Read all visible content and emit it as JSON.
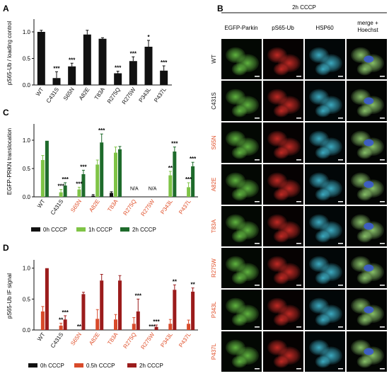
{
  "panel_letters": {
    "a": "A",
    "b": "B",
    "c": "C",
    "d": "D"
  },
  "genotypes": [
    "WT",
    "C431S",
    "S65N",
    "A82E",
    "T83A",
    "R275Q",
    "R275W",
    "P343L",
    "P437L"
  ],
  "pd_mutant_color": "#e0502a",
  "colors": {
    "black": "#111111",
    "green_light": "#7fc446",
    "green_mid": "#2fa02f",
    "green_dark": "#1e6b2b",
    "red_light": "#e88a6f",
    "red_mid": "#d84a2a",
    "red_dark": "#9b1c1c"
  },
  "panel_b": {
    "treatment": "2h CCCP",
    "columns": [
      "EGFP-Parkin",
      "pS65-Ub",
      "HSP60",
      "merge +",
      "Hoechst"
    ],
    "rows": [
      "WT",
      "C431S",
      "S65N",
      "A82E",
      "T83A",
      "R275W",
      "P343L",
      "P437L"
    ],
    "pd_rows": [
      "S65N",
      "A82E",
      "T83A",
      "R275W",
      "P343L",
      "P437L"
    ]
  },
  "chart_data": [
    {
      "id": "A",
      "type": "bar",
      "ylabel": "pS65-Ub / loading control",
      "ylim": [
        0,
        1.2
      ],
      "yticks": [
        0.0,
        0.5,
        1.0
      ],
      "categories": [
        "WT",
        "C431S",
        "S65N",
        "A82E",
        "T83A",
        "R275Q",
        "R275W",
        "P343L",
        "P437L"
      ],
      "series": [
        {
          "values": [
            1.0,
            0.13,
            0.35,
            0.95,
            0.87,
            0.22,
            0.45,
            0.72,
            0.27
          ],
          "errors": [
            0.03,
            0.12,
            0.06,
            0.08,
            0.02,
            0.04,
            0.08,
            0.12,
            0.09
          ],
          "color": "#111111"
        }
      ],
      "significance": [
        "",
        "***",
        "***",
        "",
        "",
        "***",
        "***",
        "*",
        "***"
      ]
    },
    {
      "id": "C",
      "type": "bar",
      "ylabel": "EGFP-PRKN translocation",
      "ylim": [
        0,
        1.25
      ],
      "yticks": [
        0.0,
        0.5,
        1.0
      ],
      "categories": [
        "WT",
        "C431S",
        "S65N",
        "A82E",
        "T83A",
        "R275Q",
        "R275W",
        "P343L",
        "P437L"
      ],
      "series": [
        {
          "name": "0h CCCP",
          "color": "#111111",
          "values": [
            0.0,
            0.0,
            0.0,
            0.02,
            0.07,
            null,
            null,
            0.0,
            0.0
          ],
          "errors": [
            0,
            0,
            0,
            0.02,
            0.02,
            0,
            0,
            0,
            0
          ]
        },
        {
          "name": "1h CCCP",
          "color": "#7fc446",
          "values": [
            0.65,
            0.08,
            0.13,
            0.57,
            0.78,
            null,
            null,
            0.38,
            0.17
          ],
          "errors": [
            0.08,
            0.05,
            0.04,
            0.08,
            0.1,
            0,
            0,
            0.07,
            0.08
          ]
        },
        {
          "name": "2h CCCP",
          "color": "#1e6b2b",
          "values": [
            0.99,
            0.2,
            0.4,
            0.96,
            0.84,
            null,
            null,
            0.8,
            0.54
          ],
          "errors": [
            0,
            0.05,
            0.07,
            0.15,
            0.05,
            0,
            0,
            0.08,
            0.07
          ]
        }
      ],
      "significance_1h": [
        "",
        "***",
        "***",
        "",
        "",
        "",
        "",
        "**",
        "***"
      ],
      "significance_2h": [
        "",
        "***",
        "***",
        "***",
        "",
        "",
        "",
        "***",
        "***"
      ],
      "na_label": "N/A",
      "na_categories": [
        "R275Q",
        "R275W"
      ]
    },
    {
      "id": "D",
      "type": "bar",
      "ylabel": "pS65-Ub IF signal",
      "ylim": [
        0,
        1.1
      ],
      "yticks": [
        0.0,
        0.5,
        1.0
      ],
      "categories": [
        "WT",
        "C431S",
        "S65N",
        "A82E",
        "T83A",
        "R275Q",
        "R275W",
        "P343L",
        "P437L"
      ],
      "series": [
        {
          "name": "0h CCCP",
          "color": "#111111",
          "values": [
            0.0,
            0.0,
            0.0,
            0.0,
            0.0,
            0.0,
            0.0,
            0.0,
            0.0
          ],
          "errors": [
            0,
            0,
            0,
            0,
            0,
            0,
            0,
            0,
            0
          ]
        },
        {
          "name": "0.5h CCCP",
          "color": "#d84a2a",
          "values": [
            0.3,
            0.07,
            0.0,
            0.18,
            0.17,
            0.1,
            0.0,
            0.1,
            0.1
          ],
          "errors": [
            0.08,
            0.04,
            0,
            0.15,
            0.08,
            0.1,
            0,
            0.07,
            0.06
          ]
        },
        {
          "name": "2h CCCP",
          "color": "#9b1c1c",
          "values": [
            1.0,
            0.17,
            0.58,
            0.8,
            0.8,
            0.3,
            0.05,
            0.65,
            0.62
          ],
          "errors": [
            0,
            0.06,
            0.03,
            0.1,
            0.08,
            0.2,
            0.03,
            0.08,
            0.06
          ]
        }
      ],
      "significance_05h": [
        "",
        "**",
        "**",
        "",
        "",
        "",
        "***",
        "",
        ""
      ],
      "significance_2h": [
        "",
        "***",
        "",
        "",
        "",
        "***",
        "***",
        "**",
        "**"
      ]
    }
  ]
}
